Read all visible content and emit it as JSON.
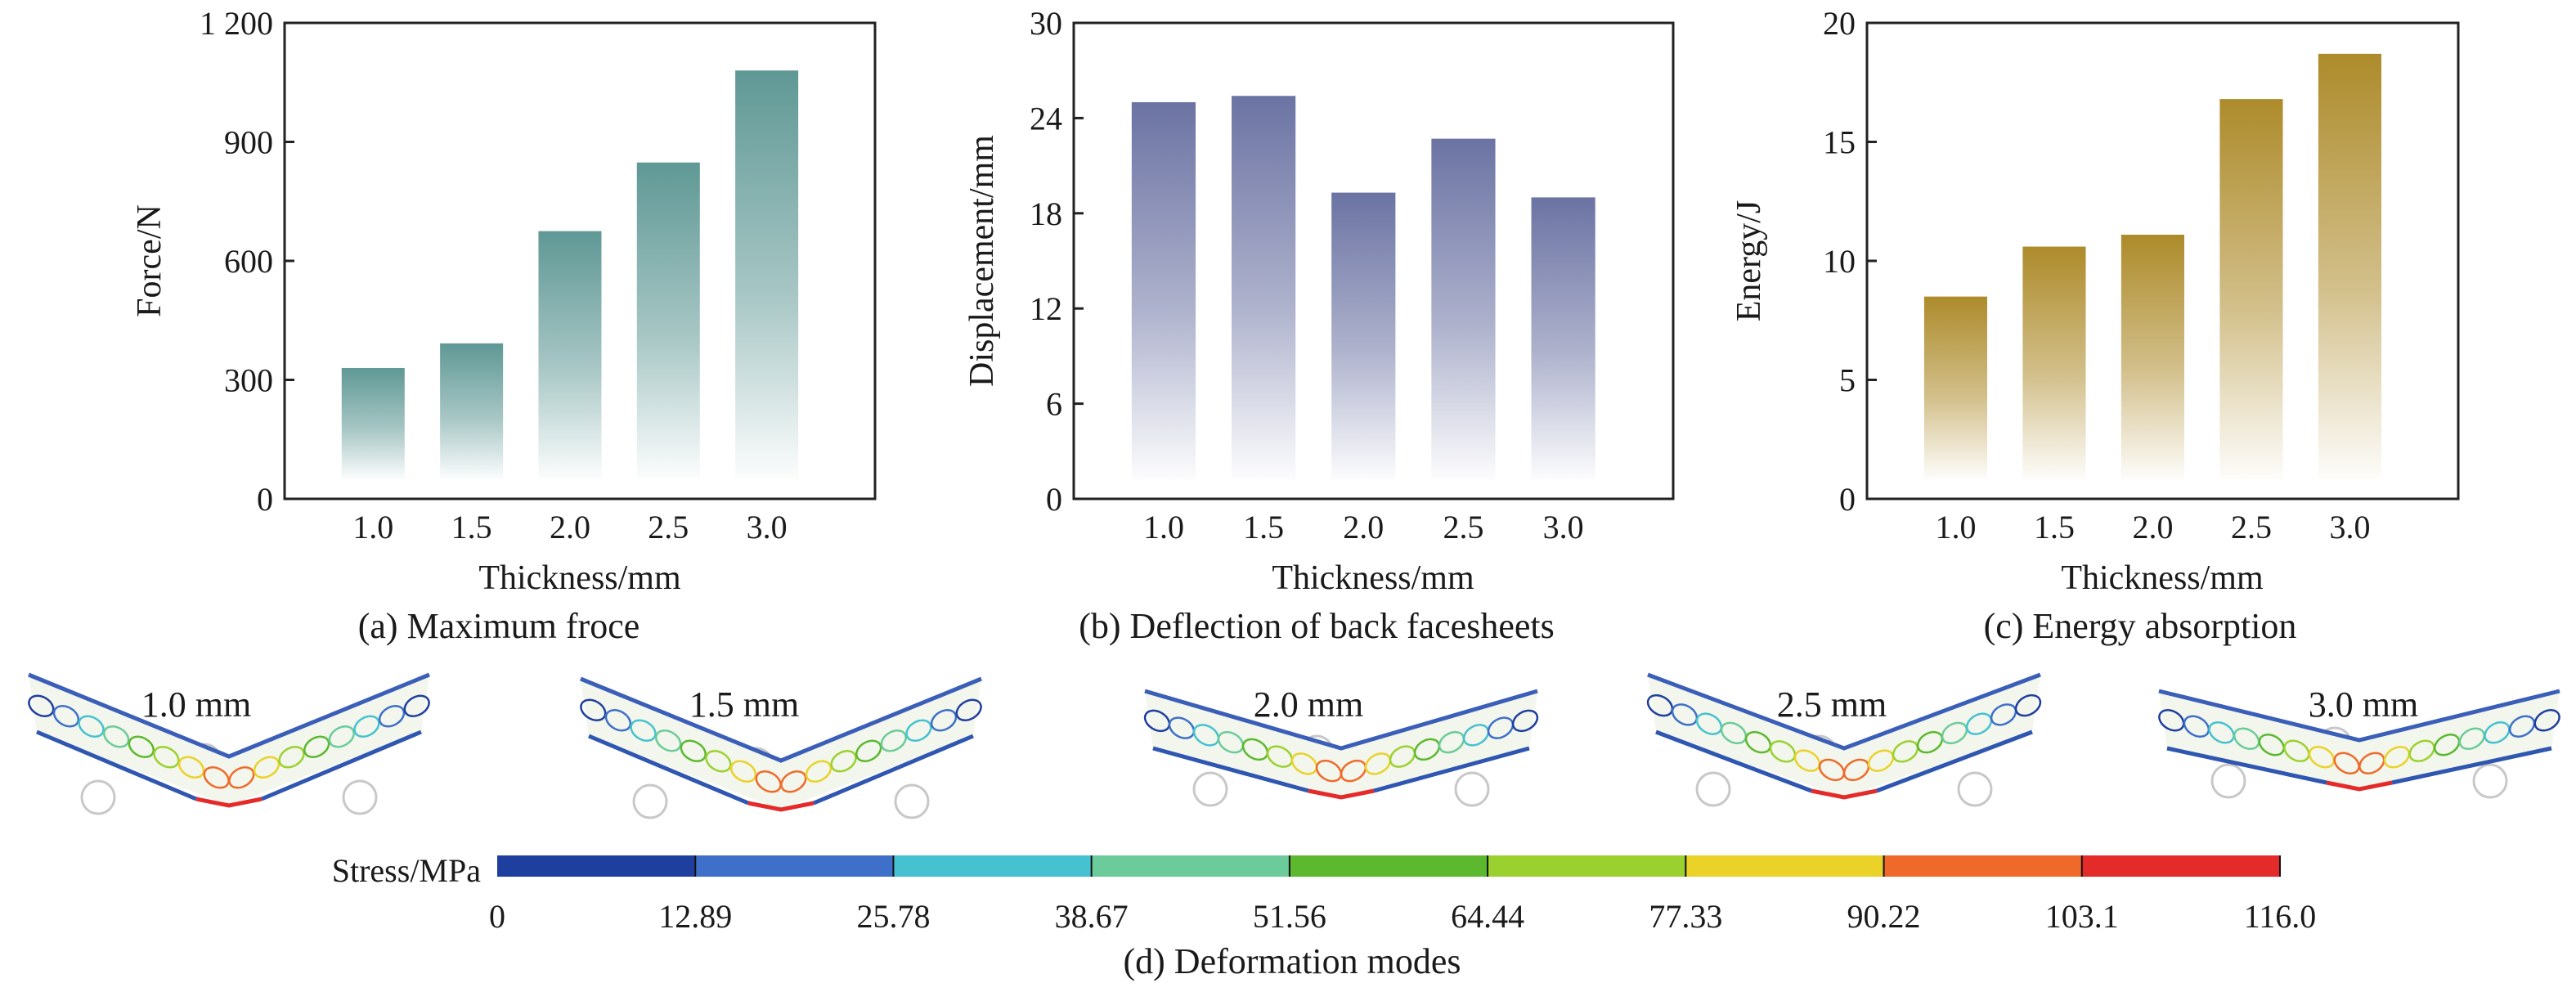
{
  "chart_data": [
    {
      "type": "bar",
      "categories": [
        "1.0",
        "1.5",
        "2.0",
        "2.5",
        "3.0"
      ],
      "values": [
        330,
        392,
        675,
        848,
        1080
      ],
      "xlabel": "Thickness/mm",
      "ylabel": "Force/N",
      "yticks": [
        "0",
        "300",
        "600",
        "900",
        "1 200"
      ],
      "ylim": [
        0,
        1200
      ],
      "caption": "(a) Maximum froce",
      "color": "#5f9895"
    },
    {
      "type": "bar",
      "categories": [
        "1.0",
        "1.5",
        "2.0",
        "2.5",
        "3.0"
      ],
      "values": [
        25.0,
        25.4,
        19.3,
        22.7,
        19.0
      ],
      "xlabel": "Thickness/mm",
      "ylabel": "Displacement/mm",
      "yticks": [
        "0",
        "6",
        "12",
        "18",
        "24",
        "30"
      ],
      "ylim": [
        0,
        30
      ],
      "caption": "(b) Deflection of back facesheets",
      "color": "#6b73a3"
    },
    {
      "type": "bar",
      "categories": [
        "1.0",
        "1.5",
        "2.0",
        "2.5",
        "3.0"
      ],
      "values": [
        8.5,
        10.6,
        11.1,
        16.8,
        18.7
      ],
      "xlabel": "Thickness/mm",
      "ylabel": "Energy/J",
      "yticks": [
        "0",
        "5",
        "10",
        "15",
        "20"
      ],
      "ylim": [
        0,
        20
      ],
      "caption": "(c) Energy absorption",
      "color": "#ad8b2b"
    }
  ],
  "deformation": {
    "labels": [
      "1.0 mm",
      "1.5 mm",
      "2.0 mm",
      "2.5 mm",
      "3.0 mm"
    ],
    "colorbar_title": "Stress/MPa",
    "colorbar_ticks": [
      "0",
      "12.89",
      "25.78",
      "38.67",
      "51.56",
      "64.44",
      "77.33",
      "90.22",
      "103.1",
      "116.0"
    ],
    "colorbar_colors": [
      "#1f3f9e",
      "#3e6fc9",
      "#46c1cf",
      "#6bcb9a",
      "#5cb82f",
      "#9bd12e",
      "#ead228",
      "#ef6a2a",
      "#e52a2a"
    ],
    "caption": "(d) Deformation modes"
  }
}
